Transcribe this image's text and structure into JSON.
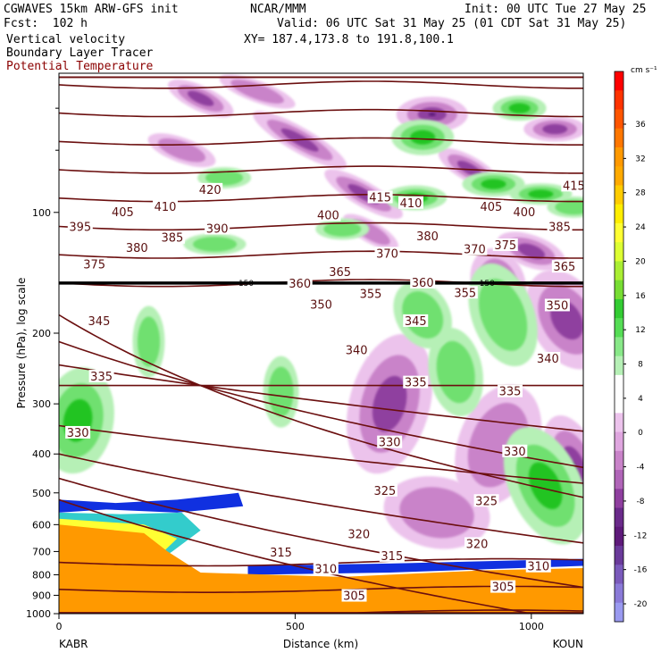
{
  "header": {
    "model": "CGWAVES 15km ARW-GFS init",
    "forecast": "Fcst:  102 h",
    "field1": "Vertical velocity",
    "field2": "Boundary Layer Tracer",
    "field3": "Potential Temperature",
    "org": "NCAR/MMM",
    "init": "Init: 00 UTC Tue 27 May 25",
    "valid": "Valid: 06 UTC Sat 31 May 25 (01 CDT Sat 31 May 25)",
    "xy": "XY= 187.4,173.8 to 191.8,100.1"
  },
  "colors": {
    "theta": "#6b0f0f",
    "tropopause": "#000000",
    "pos_light": "#b6f0b6",
    "pos_mid": "#6fe06f",
    "pos_dark": "#22c422",
    "neg_light": "#ecc3ec",
    "neg_mid": "#c983c9",
    "neg_dark": "#8f3f9f",
    "neg_darkest": "#5e1a7a",
    "bl_orange": "#ff9900",
    "bl_blue": "#1030e0",
    "bl_cyan": "#33cccc",
    "bl_yellow": "#ffff33"
  },
  "chart_data": {
    "type": "heatmap",
    "title": "Vertical velocity",
    "xlabel": "Distance (km)",
    "ylabel": "Pressure (hPa), log scale",
    "x_ticks": [
      "0",
      "500",
      "1000"
    ],
    "y_ticks": [
      "100",
      "200",
      "300",
      "400",
      "500",
      "600",
      "700",
      "800",
      "900",
      "1000"
    ],
    "x_endpoints": [
      "KABR",
      "KOUN"
    ],
    "xlim": [
      0,
      1110
    ],
    "ylim": [
      1000,
      45
    ],
    "y_scale": "log",
    "colorbar": {
      "units": "cm s⁻¹",
      "labels": [
        "36",
        "32",
        "28",
        "24",
        "20",
        "16",
        "12",
        "8",
        "4",
        "0",
        "-4",
        "-8",
        "-12",
        "-16",
        "-20"
      ],
      "colors": [
        "#ff0000",
        "#ff3300",
        "#ff5500",
        "#ff7700",
        "#ff9900",
        "#ffaa00",
        "#ffcc00",
        "#ffee00",
        "#ffff33",
        "#ddff33",
        "#aaee33",
        "#77dd33",
        "#33cc33",
        "#55dd55",
        "#88e888",
        "#b6f0b6",
        "#ffffff",
        "#ffffff",
        "#ecc3ec",
        "#dfa6df",
        "#c983c9",
        "#b065b8",
        "#8f3f9f",
        "#6a2a8a",
        "#5e1a7a",
        "#6a3a9a",
        "#7a5abb",
        "#8a7ad8",
        "#9a9af0"
      ]
    },
    "tropopause": {
      "label": "150",
      "pressure_hpa": 150
    },
    "theta_labels": [
      {
        "v": "420",
        "x": 320,
        "p": 88
      },
      {
        "v": "415",
        "x": 680,
        "p": 92
      },
      {
        "v": "415",
        "x": 1090,
        "p": 86
      },
      {
        "v": "410",
        "x": 225,
        "p": 97
      },
      {
        "v": "410",
        "x": 745,
        "p": 95
      },
      {
        "v": "405",
        "x": 135,
        "p": 100
      },
      {
        "v": "405",
        "x": 915,
        "p": 97
      },
      {
        "v": "400",
        "x": 570,
        "p": 102
      },
      {
        "v": "400",
        "x": 985,
        "p": 100
      },
      {
        "v": "395",
        "x": 45,
        "p": 109
      },
      {
        "v": "390",
        "x": 335,
        "p": 110
      },
      {
        "v": "385",
        "x": 240,
        "p": 116
      },
      {
        "v": "385",
        "x": 1060,
        "p": 109
      },
      {
        "v": "380",
        "x": 165,
        "p": 123
      },
      {
        "v": "380",
        "x": 780,
        "p": 115
      },
      {
        "v": "375",
        "x": 75,
        "p": 135
      },
      {
        "v": "375",
        "x": 945,
        "p": 121
      },
      {
        "v": "370",
        "x": 695,
        "p": 127
      },
      {
        "v": "370",
        "x": 880,
        "p": 124
      },
      {
        "v": "365",
        "x": 595,
        "p": 141
      },
      {
        "v": "365",
        "x": 1070,
        "p": 137
      },
      {
        "v": "360",
        "x": 510,
        "p": 151
      },
      {
        "v": "360",
        "x": 770,
        "p": 150
      },
      {
        "v": "355",
        "x": 660,
        "p": 160
      },
      {
        "v": "355",
        "x": 860,
        "p": 159
      },
      {
        "v": "350",
        "x": 555,
        "p": 170
      },
      {
        "v": "350",
        "x": 1055,
        "p": 171
      },
      {
        "v": "345",
        "x": 85,
        "p": 187
      },
      {
        "v": "345",
        "x": 755,
        "p": 187
      },
      {
        "v": "340",
        "x": 630,
        "p": 221
      },
      {
        "v": "340",
        "x": 1035,
        "p": 232
      },
      {
        "v": "335",
        "x": 90,
        "p": 257
      },
      {
        "v": "335",
        "x": 755,
        "p": 266
      },
      {
        "v": "335",
        "x": 955,
        "p": 280
      },
      {
        "v": "330",
        "x": 40,
        "p": 355
      },
      {
        "v": "330",
        "x": 700,
        "p": 375
      },
      {
        "v": "330",
        "x": 965,
        "p": 395
      },
      {
        "v": "325",
        "x": 690,
        "p": 495
      },
      {
        "v": "325",
        "x": 905,
        "p": 525
      },
      {
        "v": "320",
        "x": 635,
        "p": 635
      },
      {
        "v": "320",
        "x": 885,
        "p": 672
      },
      {
        "v": "315",
        "x": 470,
        "p": 705
      },
      {
        "v": "315",
        "x": 705,
        "p": 720
      },
      {
        "v": "310",
        "x": 565,
        "p": 775
      },
      {
        "v": "310",
        "x": 1015,
        "p": 765
      },
      {
        "v": "305",
        "x": 625,
        "p": 905
      },
      {
        "v": "305",
        "x": 940,
        "p": 860
      }
    ]
  }
}
